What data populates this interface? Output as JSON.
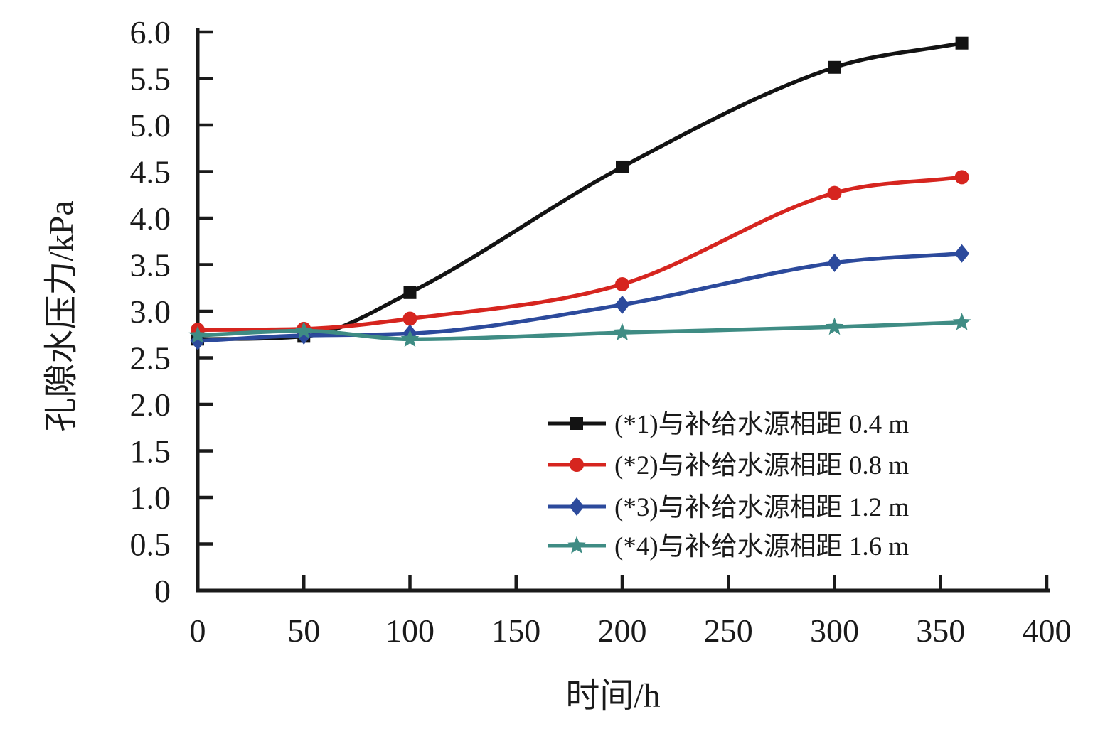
{
  "figure": {
    "background": "#ffffff",
    "text_color": "#1a1a1a"
  },
  "chart_data": {
    "type": "line",
    "title": "",
    "xlabel": "时间/h",
    "ylabel": "孔隙水压力/kPa",
    "x": [
      0,
      50,
      100,
      200,
      300,
      360
    ],
    "xlim": [
      0,
      400
    ],
    "ylim": [
      0,
      6.0
    ],
    "grid": false,
    "legend_position": "inside-lower-right",
    "x_ticks": [
      0,
      50,
      100,
      150,
      200,
      250,
      300,
      350,
      400
    ],
    "x_tick_labels": [
      "0",
      "50",
      "100",
      "150",
      "200",
      "250",
      "300",
      "350",
      "400"
    ],
    "y_ticks": [
      0,
      0.5,
      1.0,
      1.5,
      2.0,
      2.5,
      3.0,
      3.5,
      4.0,
      4.5,
      5.0,
      5.5,
      6.0
    ],
    "y_tick_labels": [
      "0",
      "0.5",
      "1.0",
      "1.5",
      "2.0",
      "2.5",
      "3.0",
      "3.5",
      "4.0",
      "4.5",
      "5.0",
      "5.5",
      "6.0"
    ],
    "series": [
      {
        "name": "(*1)与补给水源相距 0.4 m",
        "marker": "square",
        "color": "#131313",
        "values": [
          2.7,
          2.73,
          3.2,
          4.55,
          5.62,
          5.88
        ]
      },
      {
        "name": "(*2)与补给水源相距 0.8 m",
        "marker": "circle",
        "color": "#d6251f",
        "values": [
          2.8,
          2.81,
          2.92,
          3.29,
          4.27,
          4.44
        ]
      },
      {
        "name": "(*3)与补给水源相距 1.2 m",
        "marker": "diamond",
        "color": "#2c4a9c",
        "values": [
          2.68,
          2.74,
          2.76,
          3.07,
          3.52,
          3.62
        ]
      },
      {
        "name": "(*4)与补给水源相距 1.6 m",
        "marker": "star",
        "color": "#3f8c84",
        "values": [
          2.74,
          2.79,
          2.7,
          2.77,
          2.83,
          2.88
        ]
      }
    ]
  }
}
